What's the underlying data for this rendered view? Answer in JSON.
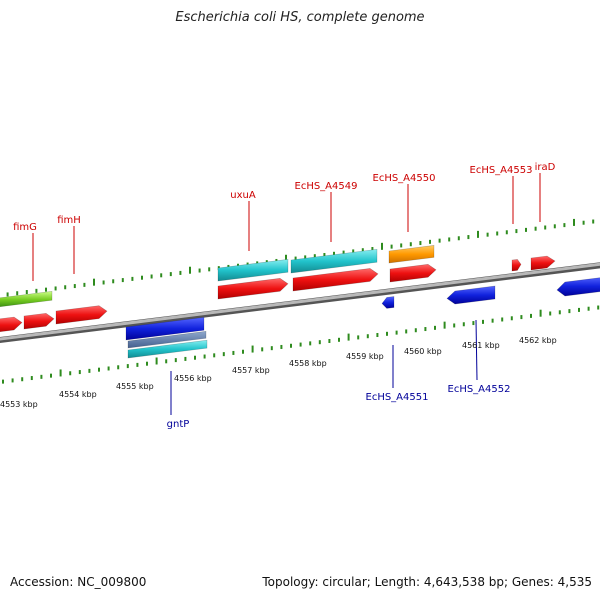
{
  "title": "Escherichia coli HS, complete genome",
  "footer": {
    "accession": "Accession: NC_009800",
    "summary": "Topology: circular; Length: 4,643,538 bp; Genes: 4,535"
  },
  "colors": {
    "backbone": "#8a8a8a",
    "tick": "#2e8b1e",
    "label_forward": "#cc0000",
    "label_reverse": "#000099",
    "gene_forward": "#ee1111",
    "gene_reverse": "#1122dd",
    "cds_cyan": "#22c4cc",
    "orange": "#ff9900",
    "green": "#66cc22",
    "steel": "#5577aa"
  },
  "scale": {
    "unit": "kbp",
    "labels": [
      "4553 kbp",
      "4554 kbp",
      "4555 kbp",
      "4556 kbp",
      "4557 kbp",
      "4558 kbp",
      "4559 kbp",
      "4560 kbp",
      "4561 kbp",
      "4562 kbp"
    ]
  },
  "gene_labels": {
    "forward": [
      "fimG",
      "fimH",
      "uxuA",
      "EcHS_A4549",
      "EcHS_A4550",
      "EcHS_A4553",
      "iraD"
    ],
    "reverse": [
      "gntP",
      "EcHS_A4551",
      "EcHS_A4552"
    ]
  }
}
